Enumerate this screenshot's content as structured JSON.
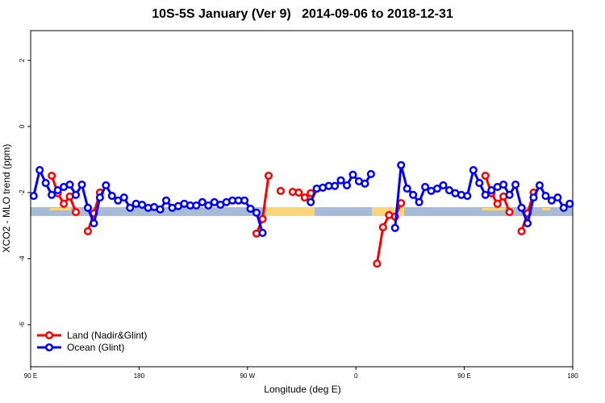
{
  "chart_data": {
    "type": "line",
    "title": "10S-5S January (Ver 9)   2014-09-06 to 2018-12-31",
    "x_label": "Longitude (deg E)",
    "y_label": "XCO2 - MLO trend (ppm)",
    "xlim": [
      90,
      540
    ],
    "ylim": [
      -7.27,
      2.9
    ],
    "xticks": [
      {
        "value": 90,
        "label": "90 E"
      },
      180,
      {
        "value": 270,
        "label": "90 W"
      },
      {
        "value": 360,
        "label": "0"
      },
      {
        "value": 450,
        "label": "90 E"
      },
      {
        "value": 540,
        "label": "180"
      }
    ],
    "yticks": [
      -6,
      -4,
      -2,
      0,
      2
    ],
    "legend": "bottom-left",
    "series": [
      {
        "name": "Land (Nadir&Glint)",
        "color": "#ff0000",
        "x": [
          107.5,
          112.5,
          117.5,
          122.5,
          127.5,
          132.5,
          137.5,
          142.5,
          147.5,
          152.5,
          277.5,
          282.5,
          287.5,
          292.5,
          297.5,
          302.5,
          307.5,
          312.5,
          317.5,
          322.5,
          327.5,
          377.5,
          382.5,
          387.5,
          392.5,
          397.5,
          402.5,
          467.5,
          472.5,
          477.5,
          482.5,
          487.5,
          492.5,
          497.5,
          502.5,
          507.5
        ],
        "values": [
          -1.49,
          -2.02,
          -2.34,
          -2.12,
          -2.59,
          null,
          -3.17,
          -2.63,
          -2.0,
          null,
          -3.24,
          -2.8,
          -1.49,
          null,
          -1.95,
          null,
          -1.98,
          -2.0,
          -2.15,
          -2.02,
          null,
          -4.15,
          -3.05,
          -2.68,
          -2.73,
          -2.32,
          null,
          -1.49,
          -2.02,
          -2.34,
          -2.12,
          -2.59,
          null,
          -3.17,
          -2.63,
          -2.0
        ]
      },
      {
        "name": "Ocean (Glint)",
        "color": "#0000ff",
        "x": [
          92.5,
          97.5,
          102.5,
          107.5,
          112.5,
          117.5,
          122.5,
          127.5,
          132.5,
          137.5,
          142.5,
          147.5,
          152.5,
          157.5,
          162.5,
          167.5,
          172.5,
          177.5,
          182.5,
          187.5,
          192.5,
          197.5,
          202.5,
          207.5,
          212.5,
          217.5,
          222.5,
          227.5,
          232.5,
          237.5,
          242.5,
          247.5,
          252.5,
          257.5,
          262.5,
          267.5,
          272.5,
          277.5,
          282.5,
          287.5,
          322.5,
          327.5,
          332.5,
          337.5,
          342.5,
          347.5,
          352.5,
          357.5,
          362.5,
          367.5,
          372.5,
          377.5,
          392.5,
          397.5,
          402.5,
          407.5,
          412.5,
          417.5,
          422.5,
          427.5,
          432.5,
          437.5,
          442.5,
          447.5,
          452.5,
          457.5,
          462.5,
          467.5,
          472.5,
          477.5,
          482.5,
          487.5,
          492.5,
          497.5,
          502.5,
          507.5,
          512.5,
          517.5,
          522.5,
          527.5,
          532.5,
          537.5
        ],
        "values": [
          -2.1,
          -1.32,
          -1.71,
          -2.07,
          -1.93,
          -1.83,
          -1.76,
          -2.07,
          -1.76,
          -2.46,
          -2.93,
          -2.15,
          -1.78,
          -2.1,
          -2.24,
          -2.15,
          -2.46,
          -2.34,
          -2.37,
          -2.46,
          -2.44,
          -2.51,
          -2.24,
          -2.46,
          -2.41,
          -2.34,
          -2.39,
          -2.39,
          -2.29,
          -2.39,
          -2.29,
          -2.37,
          -2.29,
          -2.24,
          -2.24,
          -2.24,
          -2.49,
          -2.61,
          -3.22,
          null,
          -2.29,
          -1.88,
          -1.85,
          -1.8,
          -1.8,
          -1.63,
          -1.78,
          -1.46,
          -1.66,
          -1.73,
          -1.44,
          null,
          -3.07,
          -1.17,
          -1.88,
          -2.07,
          -2.29,
          -1.83,
          -1.95,
          -1.88,
          -1.78,
          -1.93,
          -2.02,
          -2.07,
          -2.1,
          -1.32,
          -1.71,
          -2.07,
          -1.93,
          -1.83,
          -1.76,
          -2.07,
          -1.76,
          -2.46,
          -2.93,
          -2.15,
          -1.78,
          -2.1,
          -2.24,
          -2.15,
          -2.46,
          -2.34
        ]
      }
    ]
  }
}
